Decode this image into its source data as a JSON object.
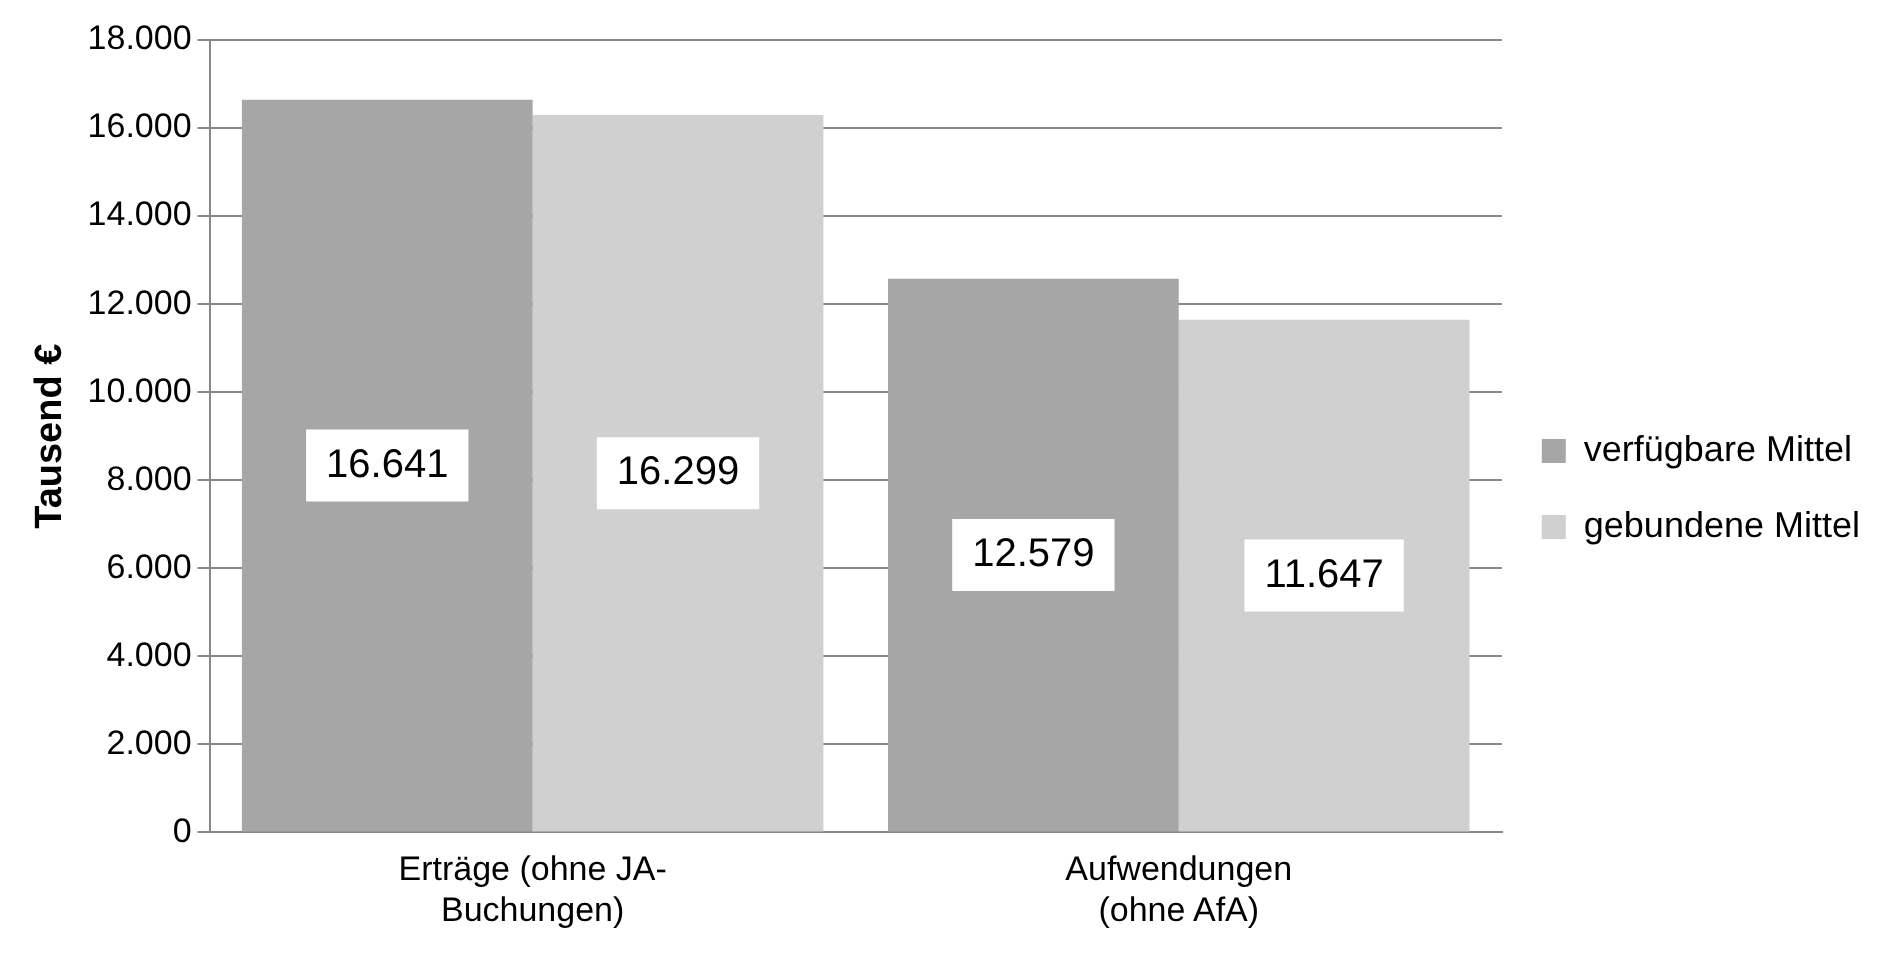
{
  "chart_data": {
    "type": "bar",
    "ylabel": "Tausend €",
    "categories": [
      "Erträge (ohne JA-Buchungen)",
      "Aufwendungen (ohne AfA)"
    ],
    "series": [
      {
        "name": "verfügbare Mittel",
        "color": "#a6a6a6",
        "values": [
          16641,
          12579
        ],
        "value_labels": [
          "16.641",
          "12.579"
        ]
      },
      {
        "name": "gebundene Mittel",
        "color": "#d0d0d0",
        "values": [
          16299,
          11647
        ],
        "value_labels": [
          "16.299",
          "11.647"
        ]
      }
    ],
    "ylim": [
      0,
      18000
    ],
    "yticks": [
      {
        "value": 0,
        "label": "0"
      },
      {
        "value": 2000,
        "label": "2.000"
      },
      {
        "value": 4000,
        "label": "4.000"
      },
      {
        "value": 6000,
        "label": "6.000"
      },
      {
        "value": 8000,
        "label": "8.000"
      },
      {
        "value": 10000,
        "label": "10.000"
      },
      {
        "value": 12000,
        "label": "12.000"
      },
      {
        "value": 14000,
        "label": "14.000"
      },
      {
        "value": 16000,
        "label": "16.000"
      },
      {
        "value": 18000,
        "label": "18.000"
      }
    ],
    "grid": "y",
    "legend": "right"
  }
}
